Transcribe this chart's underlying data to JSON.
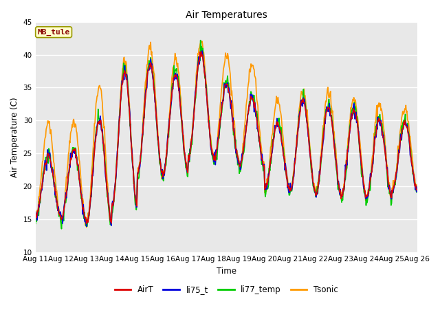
{
  "title": "Air Temperatures",
  "ylabel": "Air Temperature (C)",
  "xlabel": "Time",
  "station_label": "MB_tule",
  "ylim": [
    10,
    45
  ],
  "yticks": [
    10,
    15,
    20,
    25,
    30,
    35,
    40,
    45
  ],
  "xticklabels": [
    "Aug 11",
    "Aug 12",
    "Aug 13",
    "Aug 14",
    "Aug 15",
    "Aug 16",
    "Aug 17",
    "Aug 18",
    "Aug 19",
    "Aug 20",
    "Aug 21",
    "Aug 22",
    "Aug 23",
    "Aug 24",
    "Aug 25",
    "Aug 26"
  ],
  "colors": {
    "AirT": "#dd0000",
    "li75_t": "#0000dd",
    "li77_temp": "#00cc00",
    "Tsonic": "#ff9900"
  },
  "fig_bg": "#ffffff",
  "plot_bg": "#e8e8e8",
  "line_width": 1.2,
  "n_days": 15,
  "pts_per_day": 48,
  "daily_min_AirT": [
    15.5,
    15.0,
    14.5,
    17.0,
    22.0,
    22.0,
    24.5,
    24.0,
    23.0,
    19.5,
    19.5,
    19.0,
    18.5,
    18.5,
    19.5
  ],
  "daily_max_AirT": [
    24.5,
    25.5,
    30.0,
    37.5,
    38.5,
    37.0,
    40.0,
    35.5,
    33.5,
    29.5,
    33.0,
    32.0,
    31.5,
    30.0,
    29.5
  ],
  "tsonic_day_offset": [
    5.0,
    4.5,
    5.5,
    1.5,
    2.5,
    2.5,
    2.0,
    4.5,
    5.0,
    3.5,
    1.5,
    2.5,
    2.0,
    2.5,
    2.5
  ]
}
